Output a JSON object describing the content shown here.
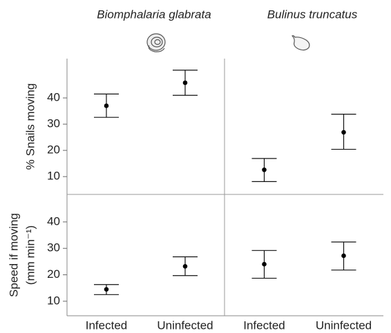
{
  "chart_data": [
    {
      "type": "errorbar",
      "title": "Biomphalaria glabrata",
      "ylabel": [
        "% Snails moving"
      ],
      "categories": [
        null,
        null
      ],
      "values": [
        37,
        45.8
      ],
      "lower": [
        32.6,
        41
      ],
      "upper": [
        41.5,
        50.6
      ],
      "ylim": [
        3.2,
        55
      ],
      "yticks": [
        10,
        20,
        30,
        40
      ]
    },
    {
      "type": "errorbar",
      "title": "Bulinus truncatus",
      "categories": [
        null,
        null
      ],
      "values": [
        12.6,
        26.9
      ],
      "lower": [
        8.1,
        20.4
      ],
      "upper": [
        16.9,
        33.8
      ],
      "ylim": [
        3.2,
        55
      ]
    },
    {
      "type": "errorbar",
      "ylabel": [
        "Speed if moving",
        "(mm min⁻¹)"
      ],
      "categories": [
        "Infected",
        "Uninfected"
      ],
      "values": [
        14.5,
        23.2
      ],
      "lower": [
        12.5,
        19.7
      ],
      "upper": [
        16.3,
        26.8
      ],
      "ylim": [
        4.5,
        50.4
      ],
      "yticks": [
        10,
        20,
        30,
        40
      ]
    },
    {
      "type": "errorbar",
      "categories": [
        "Infected",
        "Uninfected"
      ],
      "values": [
        24,
        27.2
      ],
      "lower": [
        18.7,
        21.8
      ],
      "upper": [
        29.2,
        32.4
      ],
      "ylim": [
        4.5,
        50.4
      ]
    }
  ]
}
